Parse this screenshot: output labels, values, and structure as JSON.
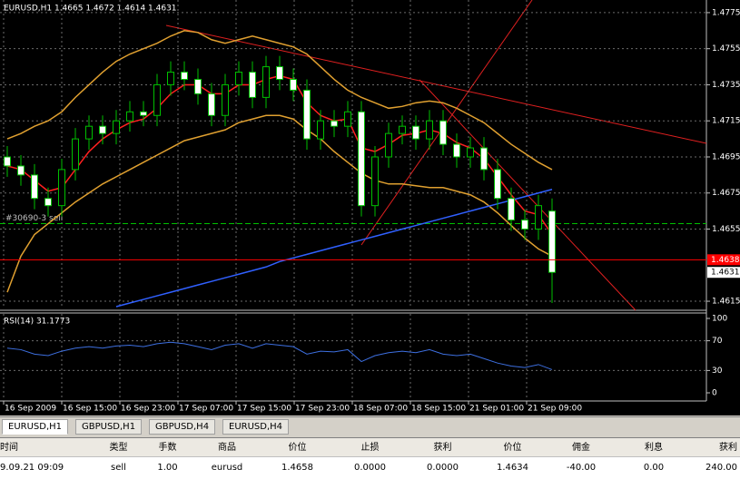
{
  "chart_data": [
    {
      "type": "candlestick",
      "title": "EURUSD,H1  1.4665 1.4672 1.4614 1.4631",
      "open": [
        1.4695,
        1.469,
        1.4685,
        1.4672,
        1.4668,
        1.4688,
        1.4705,
        1.4712,
        1.4708,
        1.4715,
        1.472,
        1.4718,
        1.4735,
        1.4742,
        1.4738,
        1.473,
        1.4718,
        1.4735,
        1.4742,
        1.4728,
        1.4745,
        1.4738,
        1.4732,
        1.4705,
        1.4715,
        1.4712,
        1.472,
        1.4668,
        1.4695,
        1.4708,
        1.4712,
        1.4705,
        1.4715,
        1.4702,
        1.4695,
        1.47,
        1.4688,
        1.4672,
        1.466,
        1.4655,
        1.4665
      ],
      "high": [
        1.4701,
        1.4696,
        1.4691,
        1.4678,
        1.4694,
        1.4711,
        1.4718,
        1.4718,
        1.4721,
        1.4726,
        1.4726,
        1.4741,
        1.4748,
        1.4748,
        1.4744,
        1.4736,
        1.4741,
        1.4748,
        1.4748,
        1.4751,
        1.4751,
        1.4744,
        1.4738,
        1.4721,
        1.4721,
        1.4726,
        1.4726,
        1.4701,
        1.4714,
        1.4718,
        1.4718,
        1.4721,
        1.4721,
        1.4708,
        1.4706,
        1.4706,
        1.4694,
        1.4678,
        1.4666,
        1.4674,
        1.4672
      ],
      "low": [
        1.4684,
        1.4679,
        1.4666,
        1.4662,
        1.4662,
        1.4682,
        1.4699,
        1.4702,
        1.4702,
        1.4709,
        1.4712,
        1.4712,
        1.4729,
        1.4732,
        1.4724,
        1.4712,
        1.4712,
        1.4729,
        1.4722,
        1.4722,
        1.4732,
        1.4726,
        1.4699,
        1.4699,
        1.4706,
        1.4706,
        1.4662,
        1.4662,
        1.4689,
        1.4702,
        1.4699,
        1.4699,
        1.4696,
        1.4689,
        1.4689,
        1.4682,
        1.4666,
        1.4654,
        1.4649,
        1.4649,
        1.4614
      ],
      "close": [
        1.469,
        1.4685,
        1.4672,
        1.4668,
        1.4688,
        1.4705,
        1.4712,
        1.4708,
        1.4715,
        1.472,
        1.4718,
        1.4735,
        1.4742,
        1.4738,
        1.473,
        1.4718,
        1.4735,
        1.4742,
        1.4728,
        1.4745,
        1.4738,
        1.4732,
        1.4705,
        1.4715,
        1.4712,
        1.472,
        1.4668,
        1.4695,
        1.4708,
        1.4712,
        1.4705,
        1.4715,
        1.4702,
        1.4695,
        1.47,
        1.4688,
        1.4672,
        1.466,
        1.4655,
        1.4668,
        1.4631
      ],
      "candle_color": "#00c000",
      "lines": [
        {
          "color": "#e0a030",
          "values": [
            1.4705,
            1.4708,
            1.4712,
            1.4715,
            1.472,
            1.4728,
            1.4735,
            1.4742,
            1.4748,
            1.4752,
            1.4755,
            1.4758,
            1.4762,
            1.4765,
            1.4764,
            1.476,
            1.4758,
            1.476,
            1.4762,
            1.476,
            1.4758,
            1.4756,
            1.4752,
            1.4745,
            1.4738,
            1.4732,
            1.4728,
            1.4725,
            1.4722,
            1.4723,
            1.4725,
            1.4726,
            1.4725,
            1.4722,
            1.4718,
            1.4714,
            1.4708,
            1.4702,
            1.4697,
            1.4692,
            1.4688
          ]
        },
        {
          "color": "#e0a030",
          "values": [
            1.462,
            1.464,
            1.4652,
            1.4658,
            1.4664,
            1.467,
            1.4675,
            1.468,
            1.4684,
            1.4688,
            1.4692,
            1.4696,
            1.47,
            1.4704,
            1.4706,
            1.4708,
            1.471,
            1.4714,
            1.4716,
            1.4718,
            1.4718,
            1.4716,
            1.471,
            1.4705,
            1.4698,
            1.4692,
            1.4686,
            1.4682,
            1.468,
            1.468,
            1.4679,
            1.4678,
            1.4678,
            1.4676,
            1.4674,
            1.467,
            1.4664,
            1.4657,
            1.465,
            1.4644,
            1.464
          ]
        },
        {
          "color": "#ff2020",
          "values": [
            1.469,
            1.4688,
            1.4682,
            1.4676,
            1.4678,
            1.4688,
            1.4698,
            1.4705,
            1.471,
            1.4714,
            1.4716,
            1.4722,
            1.473,
            1.4735,
            1.4735,
            1.473,
            1.473,
            1.4735,
            1.4735,
            1.4738,
            1.474,
            1.4738,
            1.4725,
            1.4718,
            1.4715,
            1.4716,
            1.47,
            1.4698,
            1.4702,
            1.4707,
            1.4708,
            1.471,
            1.4708,
            1.4703,
            1.47,
            1.4694,
            1.4684,
            1.4674,
            1.4665,
            1.4663,
            1.4652
          ]
        },
        {
          "color": "#3060ff",
          "values": [
            null,
            null,
            null,
            null,
            null,
            null,
            null,
            null,
            1.4612,
            1.4614,
            1.4616,
            1.4618,
            1.462,
            1.4622,
            1.4624,
            1.4626,
            1.4628,
            1.463,
            1.4632,
            1.4634,
            1.4637,
            1.4639,
            1.4641,
            1.4643,
            1.4645,
            1.4647,
            1.4649,
            1.4651,
            1.4653,
            1.4655,
            1.4657,
            1.4659,
            1.4661,
            1.4663,
            1.4665,
            1.4667,
            1.4669,
            1.4671,
            1.4673,
            1.4675,
            1.4677
          ]
        }
      ],
      "ylim": [
        1.4611,
        1.4782
      ],
      "yticks": [
        1.4775,
        1.4755,
        1.4735,
        1.4715,
        1.4695,
        1.4675,
        1.4655,
        1.4615
      ],
      "xticks": [
        "16 Sep 2009",
        "16 Sep 15:00",
        "16 Sep 23:00",
        "17 Sep 07:00",
        "17 Sep 15:00",
        "17 Sep 23:00",
        "18 Sep 07:00",
        "18 Sep 15:00",
        "21 Sep 01:00",
        "21 Sep 09:00"
      ],
      "current_price": 1.4631,
      "order_line": {
        "value": 1.4638,
        "color": "#ff0000"
      },
      "trade_line": {
        "value": 1.4658,
        "label": "#30690-3 sell",
        "color": "#00c000"
      },
      "grid": true
    },
    {
      "type": "line",
      "title": "RSI(14) 31.1773",
      "color": "#3d6fe0",
      "values": [
        60,
        58,
        52,
        50,
        56,
        60,
        62,
        60,
        63,
        64,
        62,
        66,
        68,
        66,
        62,
        58,
        64,
        66,
        60,
        66,
        64,
        62,
        52,
        56,
        55,
        58,
        42,
        50,
        54,
        56,
        54,
        58,
        52,
        50,
        52,
        46,
        40,
        36,
        34,
        38,
        31.1773
      ],
      "ylim": [
        0,
        100
      ],
      "yticks": [
        100,
        70,
        30,
        0
      ],
      "grid": true
    }
  ],
  "tabs": [
    "EURUSD,H1",
    "GBPUSD,H1",
    "GBPUSD,H4",
    "EURUSD,H4"
  ],
  "table": {
    "headers": [
      "时间",
      "类型",
      "手数",
      "商品",
      "价位",
      "止损",
      "获利",
      "价位",
      "佣金",
      "利息",
      "获利"
    ],
    "rows": [
      [
        "9.09.21 09:09",
        "sell",
        "1.00",
        "eurusd",
        "1.4658",
        "0.0000",
        "0.0000",
        "1.4634",
        "-40.00",
        "0.00",
        "240.00"
      ]
    ]
  }
}
